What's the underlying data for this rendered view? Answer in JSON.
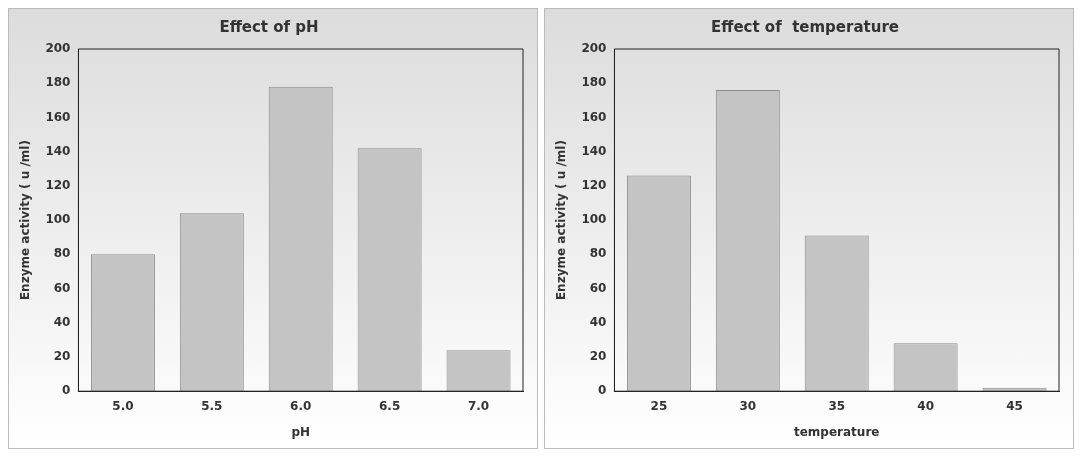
{
  "chart_data": [
    {
      "type": "bar",
      "title": "Effect of pH",
      "xlabel": "pH",
      "ylabel": "Enzyme activity ( u /ml)",
      "categories": [
        "5.0",
        "5.5",
        "6.0",
        "6.5",
        "7.0"
      ],
      "values": [
        80,
        104,
        178,
        142,
        24
      ],
      "color": "#c4c4c4",
      "ylim": [
        0,
        200
      ],
      "yticks": [
        0,
        20,
        40,
        60,
        80,
        100,
        120,
        140,
        160,
        180,
        200
      ],
      "grid": false,
      "legend": false
    },
    {
      "type": "bar",
      "title": "Effect of  temperature",
      "xlabel": "temperature",
      "ylabel": "Enzyme activity ( u /ml)",
      "categories": [
        "25",
        "30",
        "35",
        "40",
        "45"
      ],
      "values": [
        126,
        176,
        91,
        28,
        2
      ],
      "color": "#c4c4c4",
      "ylim": [
        0,
        200
      ],
      "yticks": [
        0,
        20,
        40,
        60,
        80,
        100,
        120,
        140,
        160,
        180,
        200
      ],
      "grid": false,
      "legend": false
    }
  ]
}
